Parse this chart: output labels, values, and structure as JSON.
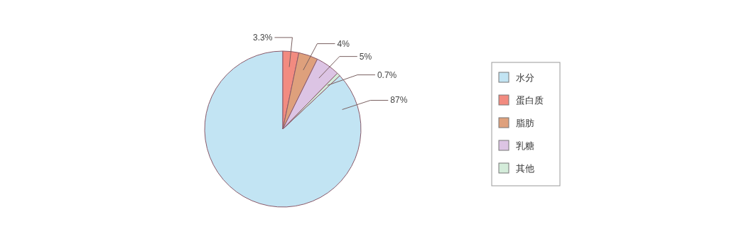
{
  "chart_data": {
    "type": "pie",
    "categories": [
      "水分",
      "蛋白质",
      "脂肪",
      "乳糖",
      "其他"
    ],
    "values": [
      87,
      3.3,
      4,
      5,
      0.7
    ],
    "colors": [
      "#c2e4f3",
      "#f28b80",
      "#dea07c",
      "#dcc4e4",
      "#d4ecda"
    ],
    "value_labels": [
      "87%",
      "3.3%",
      "4%",
      "5%",
      "0.7%"
    ],
    "legend": "right"
  }
}
